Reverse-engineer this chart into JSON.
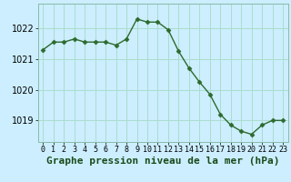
{
  "x": [
    0,
    1,
    2,
    3,
    4,
    5,
    6,
    7,
    8,
    9,
    10,
    11,
    12,
    13,
    14,
    15,
    16,
    17,
    18,
    19,
    20,
    21,
    22,
    23
  ],
  "y": [
    1021.3,
    1021.55,
    1021.55,
    1021.65,
    1021.55,
    1021.55,
    1021.55,
    1021.45,
    1021.65,
    1022.3,
    1022.2,
    1022.2,
    1021.95,
    1021.25,
    1020.7,
    1020.25,
    1019.85,
    1019.2,
    1018.85,
    1018.65,
    1018.55,
    1018.85,
    1019.0,
    1019.0
  ],
  "line_color": "#2d6a2d",
  "marker": "D",
  "marker_size": 2.5,
  "bg_color": "#cceeff",
  "grid_color": "#aaddcc",
  "xlabel": "Graphe pression niveau de la mer (hPa)",
  "xlabel_fontsize": 8,
  "xlim": [
    -0.5,
    23.5
  ],
  "ylim": [
    1018.3,
    1022.8
  ],
  "yticks": [
    1019,
    1020,
    1021,
    1022
  ],
  "xticks": [
    0,
    1,
    2,
    3,
    4,
    5,
    6,
    7,
    8,
    9,
    10,
    11,
    12,
    13,
    14,
    15,
    16,
    17,
    18,
    19,
    20,
    21,
    22,
    23
  ],
  "tick_fontsize": 7
}
